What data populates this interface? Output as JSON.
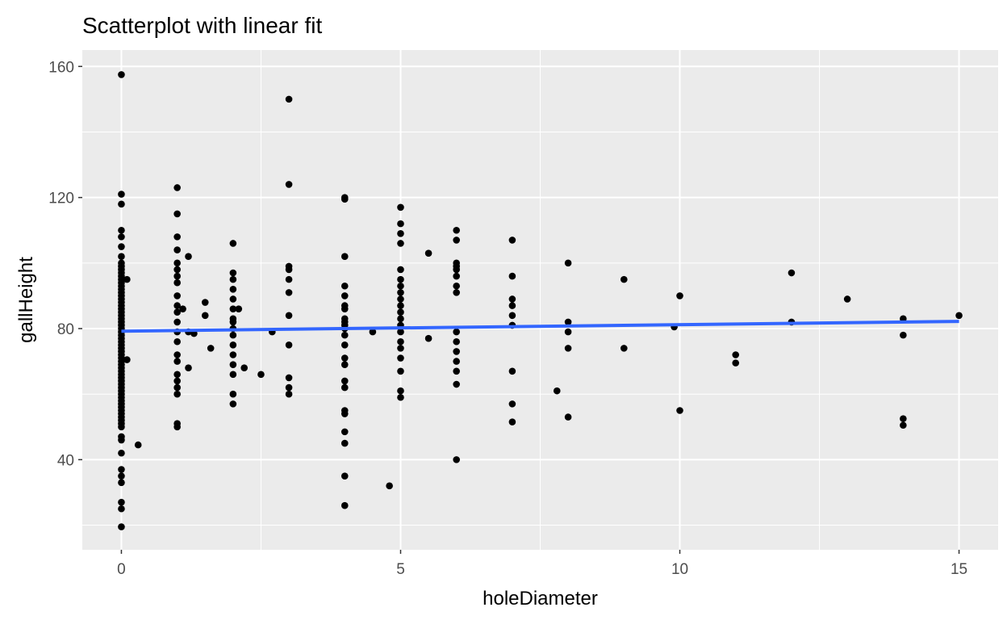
{
  "chart_data": {
    "type": "scatter",
    "title": "Scatterplot with linear fit",
    "xlabel": "holeDiameter",
    "ylabel": "gallHeight",
    "xlim": [
      -0.7,
      15.7
    ],
    "ylim": [
      12.5,
      165
    ],
    "xticks": [
      0,
      5,
      10,
      15
    ],
    "yticks": [
      40,
      80,
      120,
      160
    ],
    "x_minor_gridlines": [
      2.5,
      7.5,
      12.5
    ],
    "y_minor_gridlines": [
      20,
      60,
      100,
      140
    ],
    "grid": true,
    "panel_background": "#ebebeb",
    "point_color": "#000000",
    "fit_line": {
      "method": "lm",
      "color": "#3366ff",
      "x": [
        0,
        15
      ],
      "y": [
        79.2,
        82.2
      ]
    },
    "points": [
      [
        0,
        157.5
      ],
      [
        0,
        121
      ],
      [
        0,
        118
      ],
      [
        0,
        110
      ],
      [
        0,
        108
      ],
      [
        0,
        105
      ],
      [
        0,
        102
      ],
      [
        0,
        100
      ],
      [
        0,
        99
      ],
      [
        0,
        98
      ],
      [
        0,
        97
      ],
      [
        0,
        96
      ],
      [
        0,
        95
      ],
      [
        0,
        94
      ],
      [
        0,
        93
      ],
      [
        0,
        92
      ],
      [
        0,
        91
      ],
      [
        0,
        90
      ],
      [
        0,
        89
      ],
      [
        0,
        88
      ],
      [
        0,
        87
      ],
      [
        0,
        86
      ],
      [
        0,
        85
      ],
      [
        0,
        84
      ],
      [
        0,
        83
      ],
      [
        0,
        82
      ],
      [
        0,
        81
      ],
      [
        0,
        80
      ],
      [
        0,
        79
      ],
      [
        0,
        78
      ],
      [
        0,
        77
      ],
      [
        0,
        76
      ],
      [
        0,
        75
      ],
      [
        0,
        74
      ],
      [
        0,
        73
      ],
      [
        0,
        72
      ],
      [
        0,
        71
      ],
      [
        0,
        70
      ],
      [
        0,
        69
      ],
      [
        0,
        68
      ],
      [
        0,
        67
      ],
      [
        0,
        66
      ],
      [
        0,
        65
      ],
      [
        0,
        64
      ],
      [
        0,
        63
      ],
      [
        0,
        62
      ],
      [
        0,
        61
      ],
      [
        0,
        60
      ],
      [
        0,
        59
      ],
      [
        0,
        58
      ],
      [
        0,
        57
      ],
      [
        0,
        56
      ],
      [
        0,
        55
      ],
      [
        0,
        54
      ],
      [
        0,
        53
      ],
      [
        0,
        52
      ],
      [
        0,
        51
      ],
      [
        0,
        50
      ],
      [
        0,
        47
      ],
      [
        0,
        46
      ],
      [
        0,
        42
      ],
      [
        0,
        37
      ],
      [
        0,
        35
      ],
      [
        0,
        33
      ],
      [
        0,
        27
      ],
      [
        0,
        25
      ],
      [
        0,
        19.5
      ],
      [
        0.1,
        95
      ],
      [
        0.1,
        70.5
      ],
      [
        0.3,
        44.5
      ],
      [
        1,
        123
      ],
      [
        1,
        115
      ],
      [
        1,
        108
      ],
      [
        1,
        104
      ],
      [
        1,
        100
      ],
      [
        1,
        98
      ],
      [
        1,
        96
      ],
      [
        1,
        94
      ],
      [
        1,
        90
      ],
      [
        1,
        87
      ],
      [
        1,
        85
      ],
      [
        1,
        82
      ],
      [
        1,
        79
      ],
      [
        1,
        76
      ],
      [
        1,
        72
      ],
      [
        1,
        70
      ],
      [
        1,
        66
      ],
      [
        1,
        64
      ],
      [
        1,
        62
      ],
      [
        1,
        60
      ],
      [
        1,
        51
      ],
      [
        1,
        50
      ],
      [
        1.1,
        86
      ],
      [
        1.2,
        102
      ],
      [
        1.2,
        79
      ],
      [
        1.2,
        68
      ],
      [
        1.3,
        78.5
      ],
      [
        1.5,
        88
      ],
      [
        1.5,
        84
      ],
      [
        1.6,
        74
      ],
      [
        2,
        106
      ],
      [
        2,
        97
      ],
      [
        2,
        95
      ],
      [
        2,
        92
      ],
      [
        2,
        89
      ],
      [
        2,
        86
      ],
      [
        2,
        83
      ],
      [
        2,
        82
      ],
      [
        2,
        80
      ],
      [
        2,
        78
      ],
      [
        2,
        75
      ],
      [
        2,
        72
      ],
      [
        2,
        69
      ],
      [
        2,
        66
      ],
      [
        2,
        60
      ],
      [
        2,
        57
      ],
      [
        2.1,
        86
      ],
      [
        2.2,
        68
      ],
      [
        2.5,
        66
      ],
      [
        2.7,
        79
      ],
      [
        3,
        150
      ],
      [
        3,
        124
      ],
      [
        3,
        99
      ],
      [
        3,
        98
      ],
      [
        3,
        95
      ],
      [
        3,
        91
      ],
      [
        3,
        84
      ],
      [
        3,
        75
      ],
      [
        3,
        65
      ],
      [
        3,
        62
      ],
      [
        3,
        60
      ],
      [
        4,
        120
      ],
      [
        4,
        119.5
      ],
      [
        4,
        102
      ],
      [
        4,
        93
      ],
      [
        4,
        90
      ],
      [
        4,
        87
      ],
      [
        4,
        86
      ],
      [
        4,
        83
      ],
      [
        4,
        82
      ],
      [
        4,
        81
      ],
      [
        4,
        80
      ],
      [
        4,
        78
      ],
      [
        4,
        75
      ],
      [
        4,
        71
      ],
      [
        4,
        69
      ],
      [
        4,
        64
      ],
      [
        4,
        62
      ],
      [
        4,
        55
      ],
      [
        4,
        54
      ],
      [
        4,
        48.5
      ],
      [
        4,
        45
      ],
      [
        4,
        35
      ],
      [
        4,
        26
      ],
      [
        4.5,
        79
      ],
      [
        4.8,
        32
      ],
      [
        5,
        117
      ],
      [
        5,
        112
      ],
      [
        5,
        109
      ],
      [
        5,
        106
      ],
      [
        5,
        98
      ],
      [
        5,
        95
      ],
      [
        5,
        93
      ],
      [
        5,
        91
      ],
      [
        5,
        89
      ],
      [
        5,
        87
      ],
      [
        5,
        85
      ],
      [
        5,
        83
      ],
      [
        5,
        81
      ],
      [
        5,
        79
      ],
      [
        5,
        76
      ],
      [
        5,
        74
      ],
      [
        5,
        71
      ],
      [
        5,
        67
      ],
      [
        5,
        61
      ],
      [
        5,
        59
      ],
      [
        5.5,
        103
      ],
      [
        5.5,
        77
      ],
      [
        6,
        110
      ],
      [
        6,
        107
      ],
      [
        6,
        100
      ],
      [
        6,
        99
      ],
      [
        6,
        98
      ],
      [
        6,
        96
      ],
      [
        6,
        93
      ],
      [
        6,
        91
      ],
      [
        6,
        79
      ],
      [
        6,
        76
      ],
      [
        6,
        73
      ],
      [
        6,
        70
      ],
      [
        6,
        67
      ],
      [
        6,
        63
      ],
      [
        6,
        40
      ],
      [
        7,
        107
      ],
      [
        7,
        96
      ],
      [
        7,
        89
      ],
      [
        7,
        87
      ],
      [
        7,
        84
      ],
      [
        7,
        81
      ],
      [
        7,
        67
      ],
      [
        7,
        57
      ],
      [
        7,
        51.5
      ],
      [
        7.8,
        61
      ],
      [
        8,
        100
      ],
      [
        8,
        82
      ],
      [
        8,
        79
      ],
      [
        8,
        74
      ],
      [
        8,
        53
      ],
      [
        9,
        95
      ],
      [
        9,
        74
      ],
      [
        9.9,
        80.5
      ],
      [
        10,
        90
      ],
      [
        10,
        55
      ],
      [
        11,
        72
      ],
      [
        11,
        69.5
      ],
      [
        12,
        97
      ],
      [
        12,
        82
      ],
      [
        13,
        89
      ],
      [
        14,
        83
      ],
      [
        14,
        78
      ],
      [
        14,
        52.5
      ],
      [
        14,
        50.5
      ],
      [
        15,
        84
      ]
    ]
  }
}
